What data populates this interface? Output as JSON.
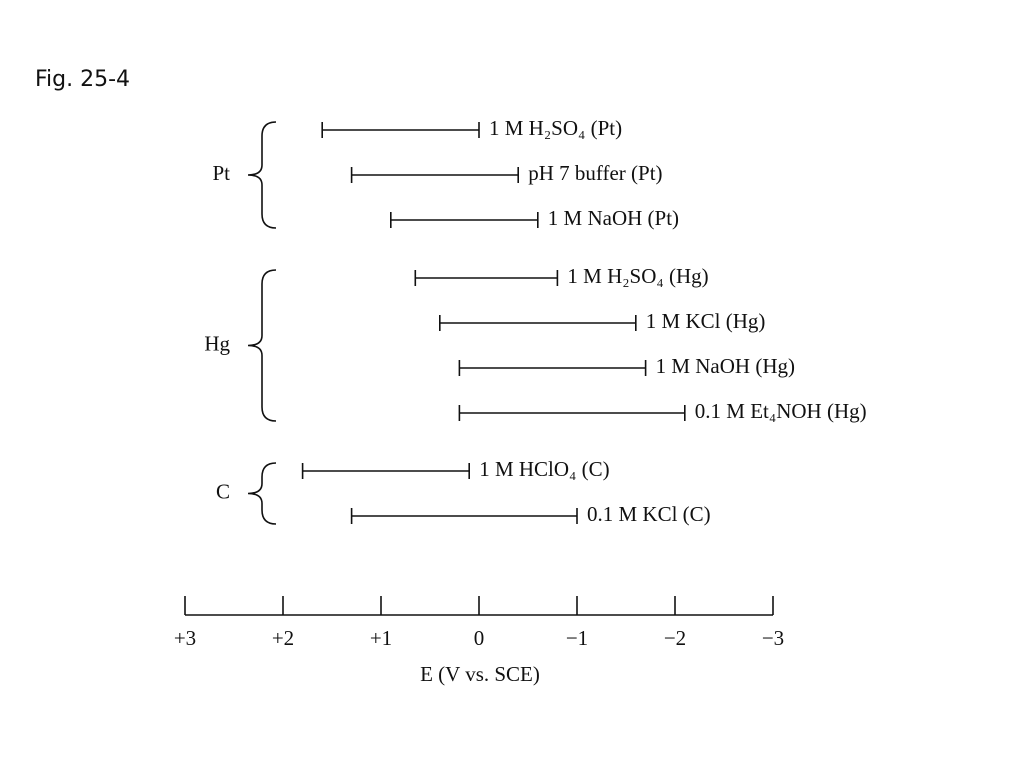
{
  "caption": "Fig. 25-4",
  "chart_data": {
    "type": "range",
    "xlabel": "E (V vs. SCE)",
    "xlim": [
      3,
      -3
    ],
    "xticks": [
      {
        "value": 3,
        "label": "+3"
      },
      {
        "value": 2,
        "label": "+2"
      },
      {
        "value": 1,
        "label": "+1"
      },
      0,
      {
        "value": -1,
        "label": "−1"
      },
      {
        "value": -2,
        "label": "−2"
      },
      {
        "value": -3,
        "label": "−3"
      }
    ],
    "groups": [
      {
        "label": "Pt",
        "categories": [
          "1 M H₂SO₄ (Pt)",
          "pH 7 buffer (Pt)",
          "1 M NaOH (Pt)"
        ],
        "start": [
          1.6,
          1.3,
          0.9
        ],
        "end": [
          0.0,
          -0.4,
          -0.6
        ]
      },
      {
        "label": "Hg",
        "categories": [
          "1 M H₂SO₄ (Hg)",
          "1 M KCl (Hg)",
          "1 M NaOH (Hg)",
          "0.1 M Et₄NOH (Hg)"
        ],
        "start": [
          0.65,
          0.4,
          0.2,
          0.2
        ],
        "end": [
          -0.8,
          -1.6,
          -1.7,
          -2.1
        ]
      },
      {
        "label": "C",
        "categories": [
          "1 M HClO₄ (C)",
          "0.1 M KCl (C)"
        ],
        "start": [
          1.8,
          1.3
        ],
        "end": [
          0.1,
          -1.0
        ]
      }
    ]
  }
}
